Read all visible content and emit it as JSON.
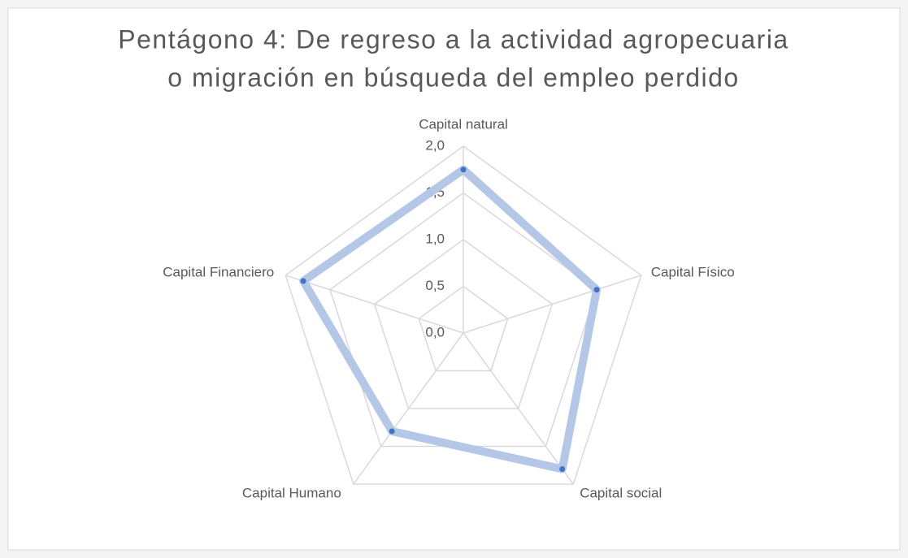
{
  "chart_data": {
    "type": "radar",
    "title": [
      "Pentágono 4: De regreso a la actividad agropecuaria",
      "o migración en búsqueda del empleo perdido"
    ],
    "categories": [
      "Capital natural",
      "Capital Físico",
      "Capital social",
      "Capital Humano",
      "Capital Financiero"
    ],
    "values": [
      1.75,
      1.5,
      1.8,
      1.3,
      1.8
    ],
    "line_color": "#b4c7e7",
    "marker_color": "#4472c4",
    "rlim": [
      0,
      2
    ],
    "rticks": [
      {
        "value": 0,
        "label": "0,0"
      },
      {
        "value": 0.5,
        "label": "0,5"
      },
      {
        "value": 1,
        "label": "1,0"
      },
      {
        "value": 1.5,
        "label": "1,5"
      },
      {
        "value": 2,
        "label": "2,0"
      }
    ],
    "grid": true
  }
}
